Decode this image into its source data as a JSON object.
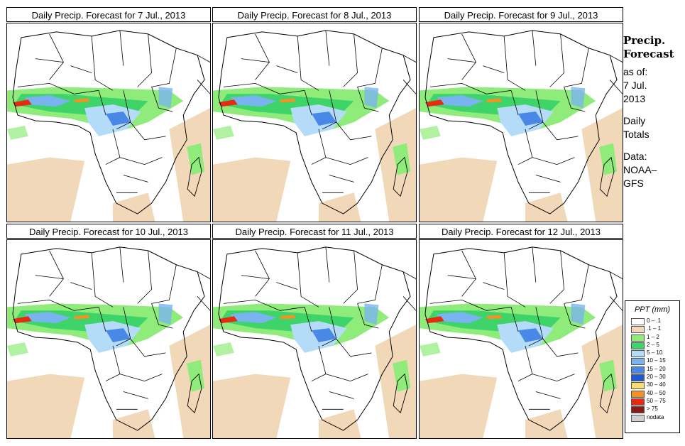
{
  "panels": [
    {
      "title": "Daily Precip. Forecast for  7 Jul., 2013"
    },
    {
      "title": "Daily Precip. Forecast for  8 Jul., 2013"
    },
    {
      "title": "Daily Precip. Forecast for  9 Jul., 2013"
    },
    {
      "title": "Daily Precip. Forecast for  10 Jul., 2013"
    },
    {
      "title": "Daily Precip. Forecast for  11 Jul., 2013"
    },
    {
      "title": "Daily Precip. Forecast for  12 Jul., 2013"
    }
  ],
  "sidebar": {
    "heading_line1": "Precip.",
    "heading_line2": "Forecast",
    "asof_label": "as of:",
    "asof_date_line1": "7 Jul.",
    "asof_date_line2": "2013",
    "period_line1": "Daily",
    "period_line2": "Totals",
    "data_label": "Data:",
    "data_source_line1": "NOAA–",
    "data_source_line2": "GFS"
  },
  "legend": {
    "title": "PPT (mm)",
    "items": [
      {
        "label": "0 – .1",
        "color": "#ffffff"
      },
      {
        "label": ".1 – 1",
        "color": "#f0d8b8"
      },
      {
        "label": "1 – 2",
        "color": "#8fec7a"
      },
      {
        "label": "2 – 5",
        "color": "#3fd46a"
      },
      {
        "label": "5 – 10",
        "color": "#b4dcf8"
      },
      {
        "label": "10 – 15",
        "color": "#7ab4f0"
      },
      {
        "label": "15 – 20",
        "color": "#4a88e8"
      },
      {
        "label": "20 – 30",
        "color": "#1f58d0"
      },
      {
        "label": "30 – 40",
        "color": "#f8dc70"
      },
      {
        "label": "40 – 50",
        "color": "#f89020"
      },
      {
        "label": "50 – 75",
        "color": "#e82a10"
      },
      {
        "label": "> 75",
        "color": "#8c1818"
      },
      {
        "label": "nodata",
        "color": "#d0d0d0"
      }
    ]
  }
}
